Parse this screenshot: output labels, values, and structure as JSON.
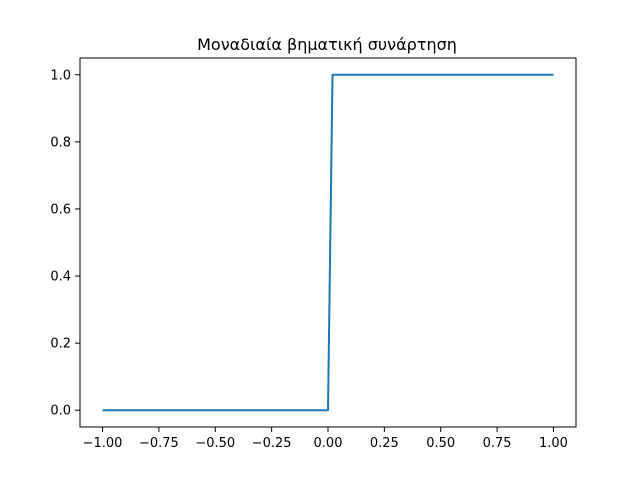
{
  "chart_data": {
    "type": "line",
    "title": "Μοναδιαία βηματική συνάρτηση",
    "xlabel": "",
    "ylabel": "",
    "xlim": [
      -1.1,
      1.1
    ],
    "ylim": [
      -0.05,
      1.05
    ],
    "grid": false,
    "legend": "none",
    "x_ticks": [
      -1.0,
      -0.75,
      -0.5,
      -0.25,
      0.0,
      0.25,
      0.5,
      0.75,
      1.0
    ],
    "x_tick_labels": [
      "−1.00",
      "−0.75",
      "−0.50",
      "−0.25",
      "0.00",
      "0.25",
      "0.50",
      "0.75",
      "1.00"
    ],
    "y_ticks": [
      0.0,
      0.2,
      0.4,
      0.6,
      0.8,
      1.0
    ],
    "y_tick_labels": [
      "0.0",
      "0.2",
      "0.4",
      "0.6",
      "0.8",
      "1.0"
    ],
    "series": [
      {
        "color": "#1f77b4",
        "x": [
          -1.0,
          0.0,
          0.02,
          1.0
        ],
        "y": [
          0.0,
          0.0,
          1.0,
          1.0
        ]
      }
    ]
  }
}
